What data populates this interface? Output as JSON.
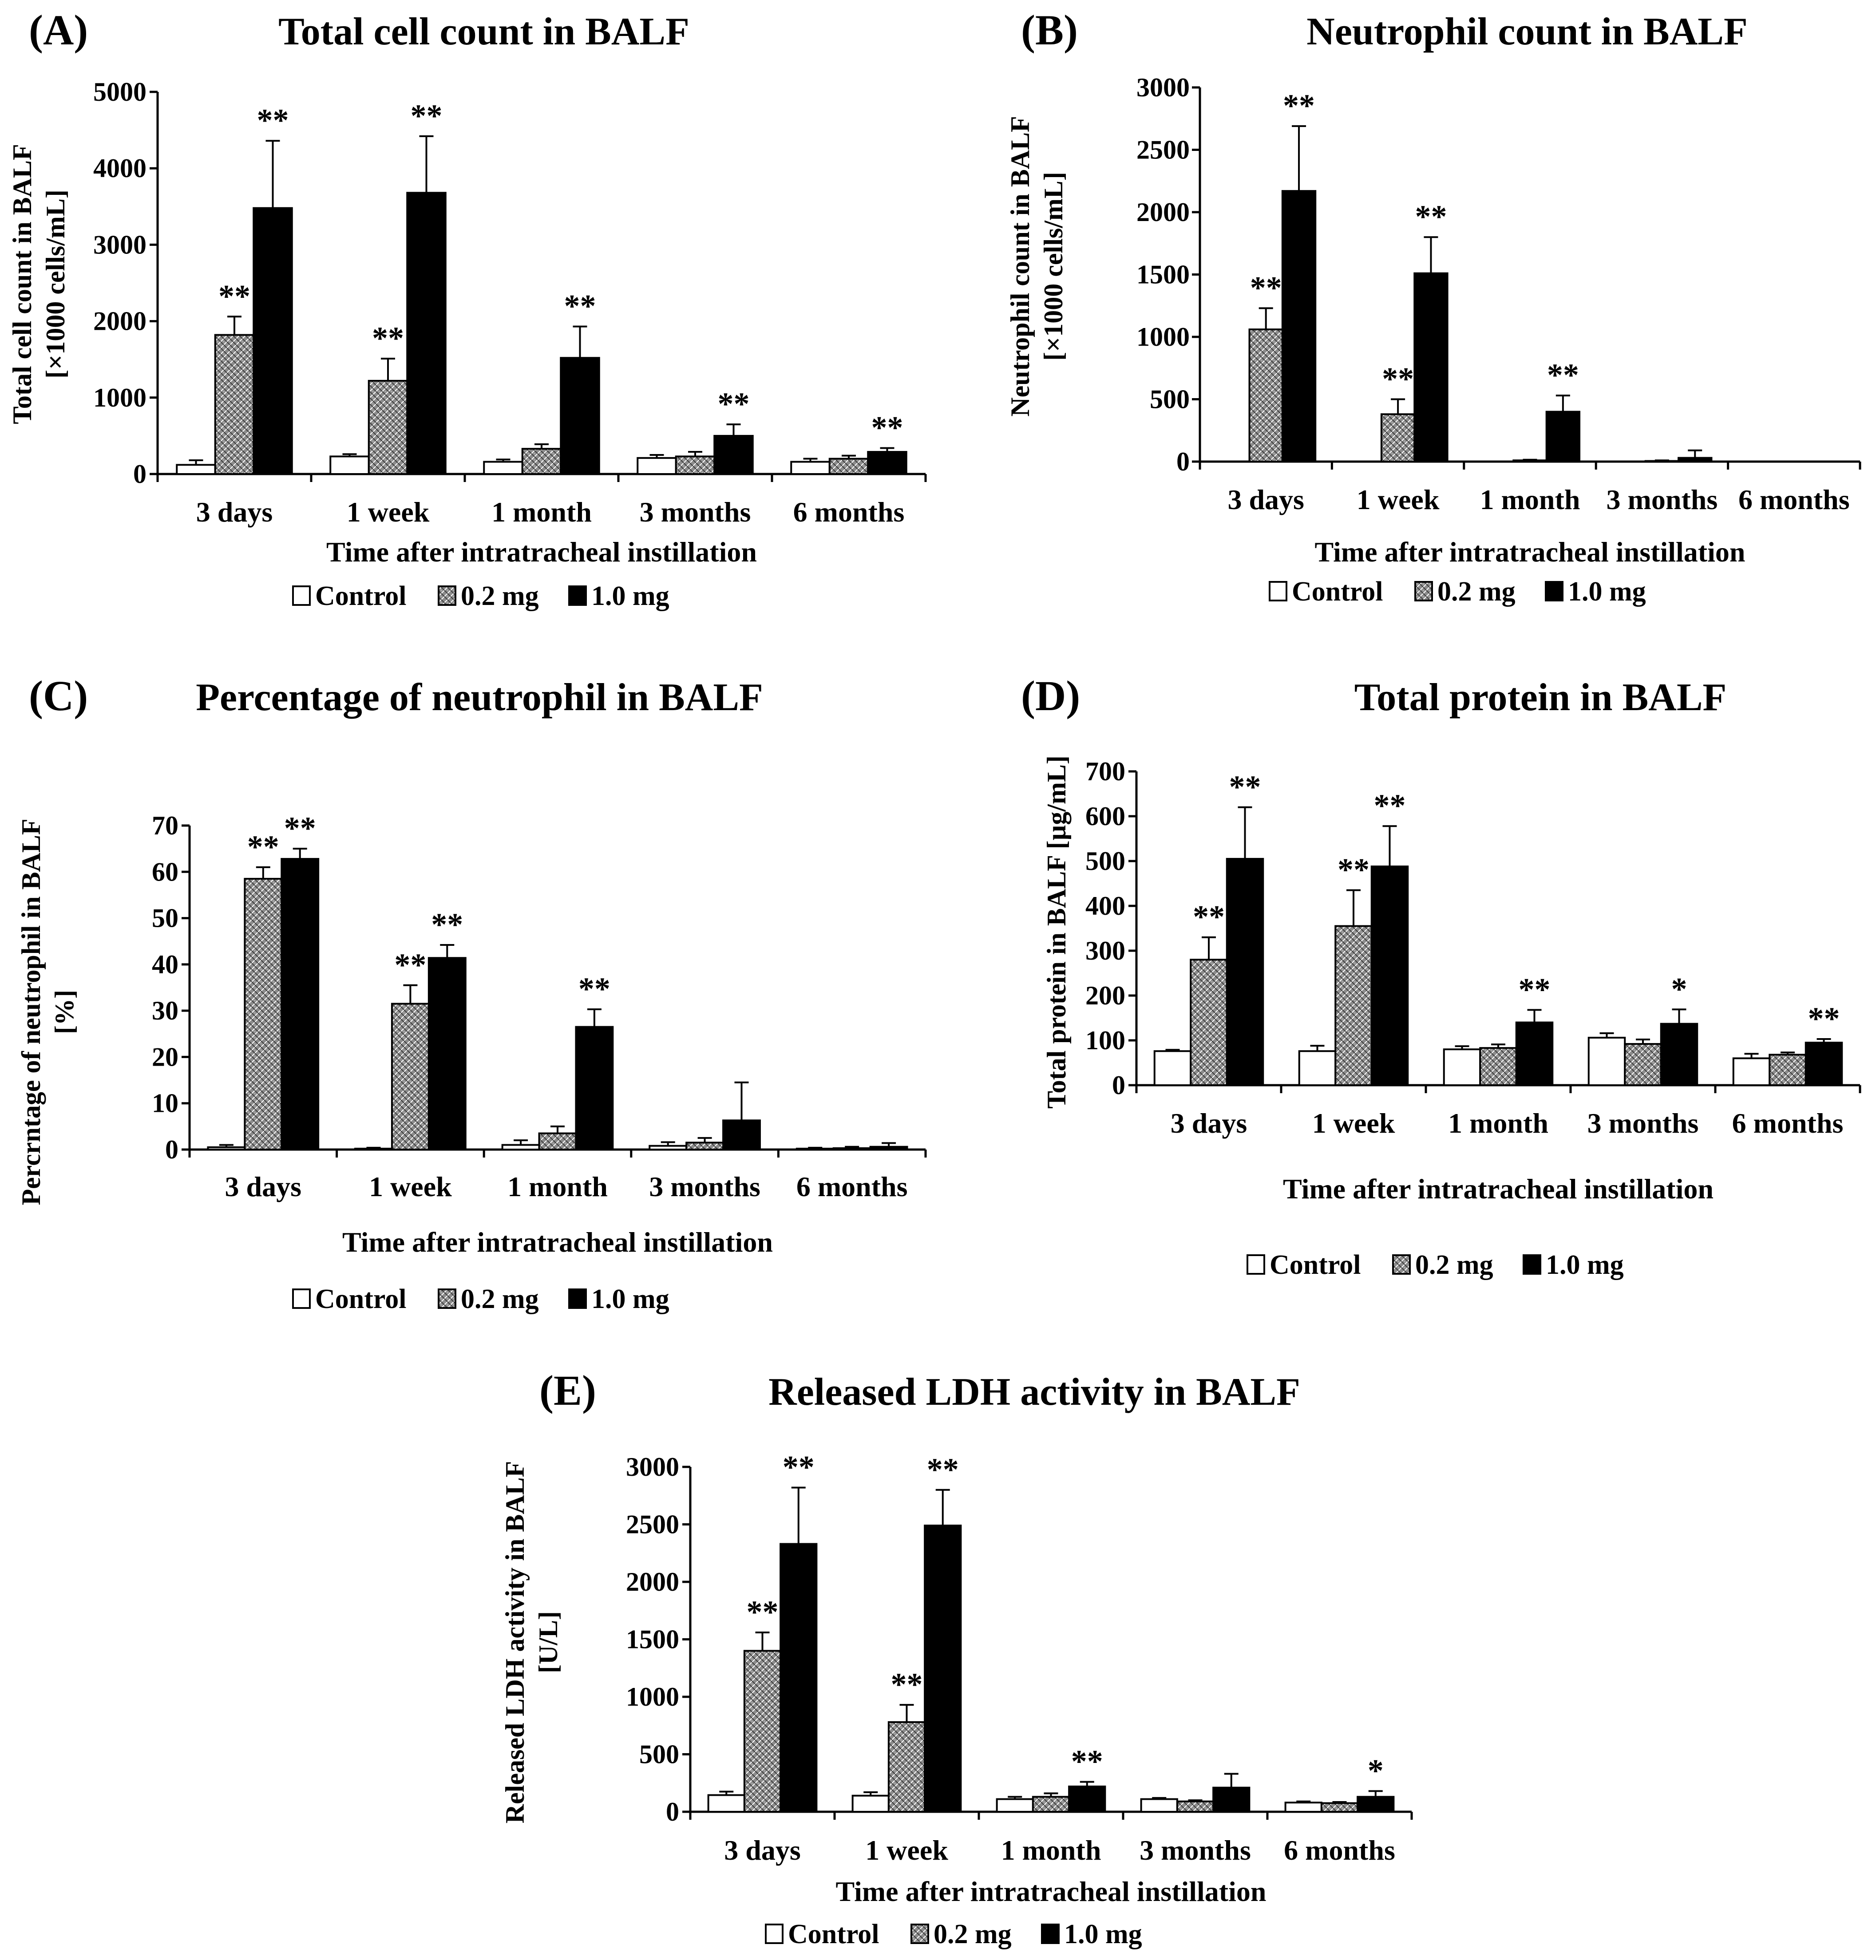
{
  "figure": {
    "legend_labels": [
      "Control",
      "0.2 mg",
      "1.0 mg"
    ],
    "colors": {
      "control": "#ffffff",
      "low_dose": "#8c8c8c",
      "high_dose": "#000000",
      "stroke": "#000000"
    }
  },
  "chart_data": [
    {
      "type": "bar",
      "panel_letter": "(A)",
      "title": "Total cell count in BALF",
      "xlabel": "Time after intratracheal instillation",
      "ylabel": [
        "Total cell count in BALF",
        "[×1000 cells/mL]"
      ],
      "ylim": [
        0,
        5000
      ],
      "yticks": [
        0,
        1000,
        2000,
        3000,
        4000,
        5000
      ],
      "categories": [
        "3 days",
        "1 week",
        "1 month",
        "3 months",
        "6 months"
      ],
      "series": [
        {
          "name": "Control",
          "values": [
            120,
            230,
            160,
            210,
            160
          ],
          "errors": [
            60,
            30,
            30,
            40,
            40
          ],
          "significance": [
            "",
            "",
            "",
            "",
            ""
          ]
        },
        {
          "name": "0.2 mg",
          "values": [
            1820,
            1220,
            330,
            230,
            200
          ],
          "errors": [
            240,
            290,
            60,
            60,
            40
          ],
          "significance": [
            "**",
            "**",
            "",
            "",
            ""
          ]
        },
        {
          "name": "1.0 mg",
          "values": [
            3480,
            3680,
            1520,
            500,
            290
          ],
          "errors": [
            880,
            740,
            410,
            150,
            50
          ],
          "significance": [
            "**",
            "**",
            "**",
            "**",
            "**"
          ]
        }
      ]
    },
    {
      "type": "bar",
      "panel_letter": "(B)",
      "title": "Neutrophil count in BALF",
      "xlabel": "Time after intratracheal instillation",
      "ylabel": [
        "Neutrophil count in BALF",
        "[×1000 cells/mL]"
      ],
      "ylim": [
        0,
        3000
      ],
      "yticks": [
        0,
        500,
        1000,
        1500,
        2000,
        2500,
        3000
      ],
      "categories": [
        "3 days",
        "1 week",
        "1 month",
        "3 months",
        "6 months"
      ],
      "series": [
        {
          "name": "Control",
          "values": [
            0,
            0,
            0,
            0,
            0
          ],
          "errors": [
            0,
            0,
            0,
            0,
            0
          ],
          "significance": [
            "",
            "",
            "",
            "",
            ""
          ]
        },
        {
          "name": "0.2 mg",
          "values": [
            1060,
            380,
            10,
            5,
            0
          ],
          "errors": [
            170,
            120,
            5,
            5,
            0
          ],
          "significance": [
            "**",
            "**",
            "",
            "",
            ""
          ]
        },
        {
          "name": "1.0 mg",
          "values": [
            2170,
            1510,
            400,
            30,
            0
          ],
          "errors": [
            520,
            290,
            130,
            60,
            0
          ],
          "significance": [
            "**",
            "**",
            "**",
            "",
            ""
          ]
        }
      ]
    },
    {
      "type": "bar",
      "panel_letter": "(C)",
      "title": "Percentage of neutrophil in BALF",
      "xlabel": "Time after intratracheal instillation",
      "ylabel": [
        "Percrntage of neutrophil in BALF",
        "[%]"
      ],
      "ylim": [
        0,
        70
      ],
      "yticks": [
        0,
        10,
        20,
        30,
        40,
        50,
        60,
        70
      ],
      "categories": [
        "3 days",
        "1 week",
        "1 month",
        "3 months",
        "6 months"
      ],
      "series": [
        {
          "name": "Control",
          "values": [
            0.5,
            0.2,
            1.0,
            0.8,
            0.2
          ],
          "errors": [
            0.5,
            0.2,
            1.0,
            0.8,
            0.2
          ],
          "significance": [
            "",
            "",
            "",
            "",
            ""
          ]
        },
        {
          "name": "0.2 mg",
          "values": [
            58.5,
            31.5,
            3.5,
            1.5,
            0.3
          ],
          "errors": [
            2.5,
            4.0,
            1.5,
            1.0,
            0.3
          ],
          "significance": [
            "**",
            "**",
            "",
            "",
            ""
          ]
        },
        {
          "name": "1.0 mg",
          "values": [
            62.8,
            41.4,
            26.5,
            6.3,
            0.6
          ],
          "errors": [
            2.2,
            2.8,
            3.8,
            8.2,
            0.8
          ],
          "significance": [
            "**",
            "**",
            "**",
            "",
            ""
          ]
        }
      ]
    },
    {
      "type": "bar",
      "panel_letter": "(D)",
      "title": "Total protein in BALF",
      "xlabel": "Time after intratracheal instillation",
      "ylabel": [
        "Total protein in BALF [µg/mL]"
      ],
      "ylim": [
        0,
        700
      ],
      "yticks": [
        0,
        100,
        200,
        300,
        400,
        500,
        600,
        700
      ],
      "categories": [
        "3 days",
        "1 week",
        "1 month",
        "3 months",
        "6 months"
      ],
      "series": [
        {
          "name": "Control",
          "values": [
            76,
            76,
            80,
            106,
            60
          ],
          "errors": [
            3,
            12,
            7,
            10,
            10
          ],
          "significance": [
            "",
            "",
            "",
            "",
            ""
          ]
        },
        {
          "name": "0.2 mg",
          "values": [
            280,
            355,
            83,
            92,
            68
          ],
          "errors": [
            50,
            80,
            8,
            10,
            5
          ],
          "significance": [
            "**",
            "**",
            "",
            "",
            ""
          ]
        },
        {
          "name": "1.0 mg",
          "values": [
            505,
            488,
            140,
            137,
            95
          ],
          "errors": [
            115,
            90,
            28,
            32,
            8
          ],
          "significance": [
            "**",
            "**",
            "**",
            "*",
            "**"
          ]
        }
      ]
    },
    {
      "type": "bar",
      "panel_letter": "(E)",
      "title": "Released LDH activity in BALF",
      "xlabel": "Time after intratracheal instillation",
      "ylabel": [
        "Released LDH activity in BALF",
        "[U/L]"
      ],
      "ylim": [
        0,
        3000
      ],
      "yticks": [
        0,
        500,
        1000,
        1500,
        2000,
        2500,
        3000
      ],
      "categories": [
        "3 days",
        "1 week",
        "1 month",
        "3 months",
        "6 months"
      ],
      "series": [
        {
          "name": "Control",
          "values": [
            145,
            140,
            110,
            110,
            80
          ],
          "errors": [
            30,
            30,
            20,
            10,
            10
          ],
          "significance": [
            "",
            "",
            "",
            "",
            ""
          ]
        },
        {
          "name": "0.2 mg",
          "values": [
            1400,
            780,
            130,
            90,
            75
          ],
          "errors": [
            160,
            150,
            30,
            10,
            10
          ],
          "significance": [
            "**",
            "**",
            "",
            "",
            ""
          ]
        },
        {
          "name": "1.0 mg",
          "values": [
            2330,
            2490,
            220,
            210,
            130
          ],
          "errors": [
            490,
            310,
            40,
            120,
            50
          ],
          "significance": [
            "**",
            "**",
            "**",
            "",
            "*"
          ]
        }
      ]
    }
  ]
}
